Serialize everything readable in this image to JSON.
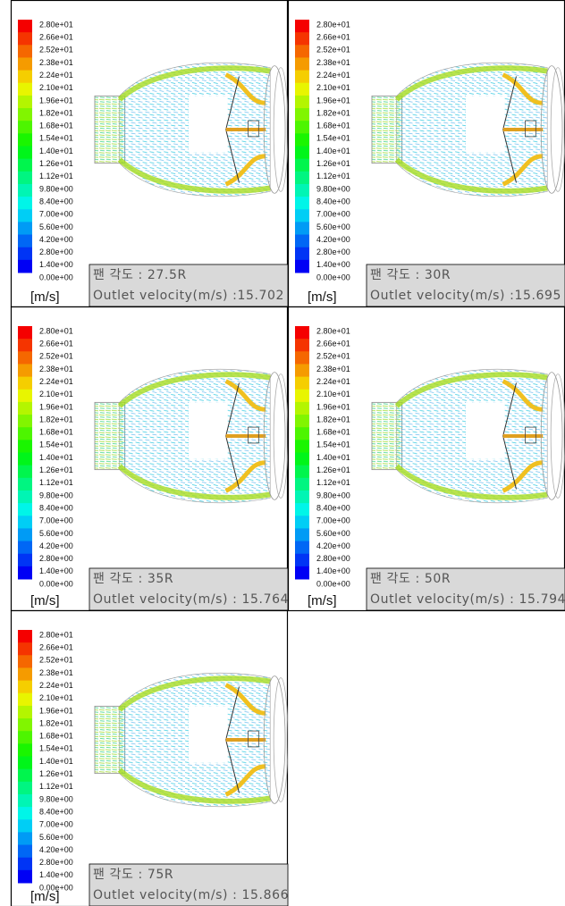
{
  "colorbar": {
    "labels": [
      "2.80e+01",
      "2.66e+01",
      "2.52e+01",
      "2.38e+01",
      "2.24e+01",
      "2.10e+01",
      "1.96e+01",
      "1.82e+01",
      "1.68e+01",
      "1.54e+01",
      "1.40e+01",
      "1.26e+01",
      "1.12e+01",
      "9.80e+00",
      "8.40e+00",
      "7.00e+00",
      "5.60e+00",
      "4.20e+00",
      "2.80e+00",
      "1.40e+00",
      "0.00e+00"
    ],
    "unit": "[m/s]"
  },
  "panels": [
    {
      "fan_angle": "팬 각도 : 27.5R",
      "outlet": "Outlet velocity(m/s) :15.702"
    },
    {
      "fan_angle": "팬 각도 : 30R",
      "outlet": "Outlet velocity(m/s) :15.695"
    },
    {
      "fan_angle": "팬 각도 : 35R",
      "outlet": "Outlet velocity(m/s) : 15.764"
    },
    {
      "fan_angle": "팬 각도 : 50R",
      "outlet": "Outlet velocity(m/s) : 15.794"
    },
    {
      "fan_angle": "팬 각도 : 75R",
      "outlet": "Outlet velocity(m/s) : 15.866"
    }
  ]
}
